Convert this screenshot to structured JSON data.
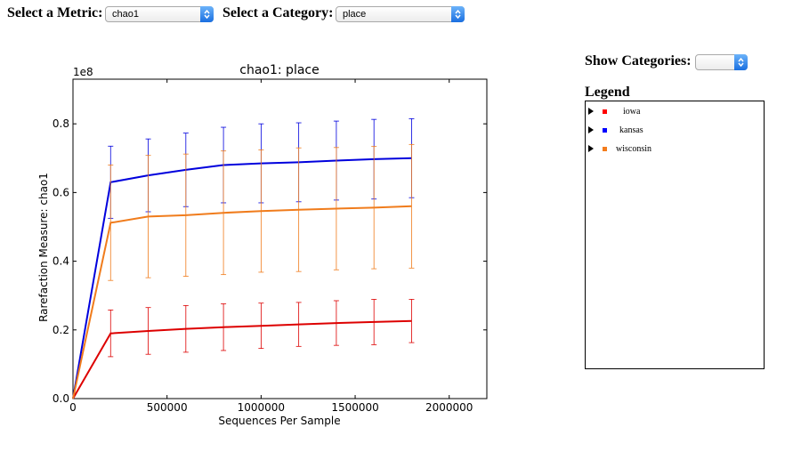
{
  "controls": {
    "metric_label": "Select a Metric:",
    "metric_value": "chao1",
    "category_label": "Select a Category:",
    "category_value": "place",
    "show_label": "Show Categories:",
    "show_value": ""
  },
  "legend": {
    "title": "Legend",
    "items": [
      {
        "label": "iowa",
        "color": "#ff0000"
      },
      {
        "label": "kansas",
        "color": "#0000ff"
      },
      {
        "label": "wisconsin",
        "color": "#f47c1c"
      }
    ]
  },
  "chart_data": {
    "type": "line",
    "title": "chao1: place",
    "xlabel": "Sequences Per Sample",
    "ylabel": "Rarefaction Measure: chao1",
    "y_multiplier": "1e8",
    "xlim": [
      0,
      2200000
    ],
    "ylim": [
      0,
      0.93
    ],
    "xticks": [
      0,
      500000,
      1000000,
      1500000,
      2000000
    ],
    "xtick_labels": [
      "0",
      "500000",
      "1000000",
      "1500000",
      "2000000"
    ],
    "yticks": [
      0.0,
      0.2,
      0.4,
      0.6,
      0.8
    ],
    "ytick_labels": [
      "0.0",
      "0.2",
      "0.4",
      "0.6",
      "0.8"
    ],
    "x": [
      0,
      200000,
      400000,
      600000,
      800000,
      1000000,
      1200000,
      1400000,
      1600000,
      1800000
    ],
    "series": [
      {
        "name": "iowa",
        "color": "#dd0000",
        "values": [
          0,
          0.19,
          0.197,
          0.203,
          0.208,
          0.212,
          0.216,
          0.22,
          0.223,
          0.226
        ],
        "err": [
          0,
          0.068,
          0.068,
          0.068,
          0.068,
          0.066,
          0.064,
          0.065,
          0.066,
          0.063
        ]
      },
      {
        "name": "kansas",
        "color": "#0000dd",
        "values": [
          0,
          0.63,
          0.65,
          0.666,
          0.68,
          0.685,
          0.688,
          0.693,
          0.697,
          0.7
        ],
        "err": [
          0,
          0.105,
          0.106,
          0.107,
          0.11,
          0.115,
          0.115,
          0.115,
          0.116,
          0.115
        ]
      },
      {
        "name": "wisconsin",
        "color": "#f07c1c",
        "values": [
          0,
          0.512,
          0.53,
          0.534,
          0.541,
          0.546,
          0.55,
          0.553,
          0.556,
          0.56
        ],
        "err": [
          0,
          0.168,
          0.178,
          0.178,
          0.18,
          0.178,
          0.18,
          0.178,
          0.178,
          0.18
        ]
      }
    ]
  }
}
